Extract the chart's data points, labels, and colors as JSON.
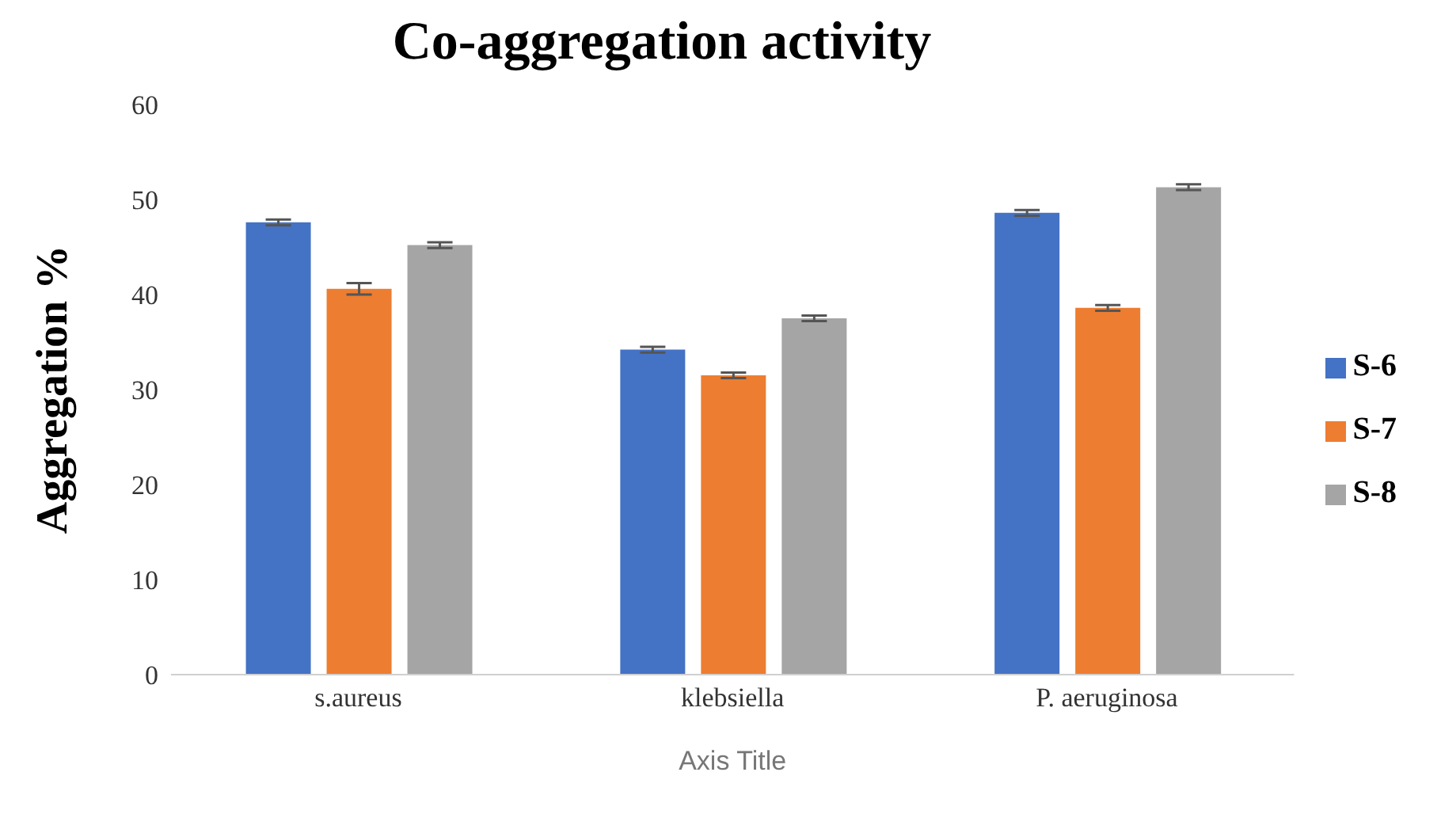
{
  "chart_data": {
    "type": "bar",
    "title": "Co-aggregation activity",
    "ylabel": "Aggregation %",
    "xlabel": "Axis Title",
    "categories": [
      "s.aureus",
      "klebsiella",
      "P. aeruginosa"
    ],
    "series": [
      {
        "name": "S-6",
        "color": "#4472c4",
        "values": [
          47.6,
          34.2,
          48.6
        ],
        "errors": [
          0.3,
          0.3,
          0.3
        ]
      },
      {
        "name": "S-7",
        "color": "#ed7d31",
        "values": [
          40.6,
          31.5,
          38.6
        ],
        "errors": [
          0.6,
          0.3,
          0.3
        ]
      },
      {
        "name": "S-8",
        "color": "#a5a5a5",
        "values": [
          45.2,
          37.5,
          51.3
        ],
        "errors": [
          0.3,
          0.3,
          0.3
        ]
      }
    ],
    "ylim": [
      0,
      60
    ],
    "yticks": [
      0,
      10,
      20,
      30,
      40,
      50,
      60
    ],
    "grid": false,
    "legend": "right"
  }
}
